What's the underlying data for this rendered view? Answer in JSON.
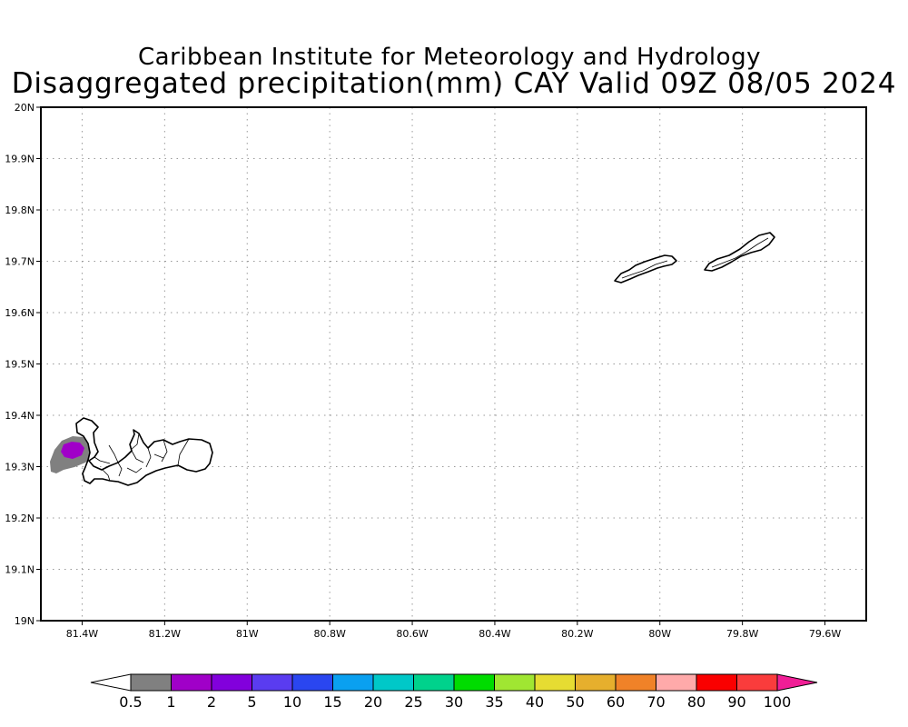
{
  "header": {
    "title": "Caribbean Institute for Meteorology and Hydrology",
    "subtitle": "Disaggregated precipitation(mm) CAY Valid 09Z 08/05 2024"
  },
  "map": {
    "lon_range": [
      -81.5,
      -79.5
    ],
    "lat_range": [
      19.0,
      20.0
    ],
    "grid": "dotted",
    "lon_ticks": [
      {
        "value": -81.4,
        "label": "81.4W"
      },
      {
        "value": -81.2,
        "label": "81.2W"
      },
      {
        "value": -81.0,
        "label": "81W"
      },
      {
        "value": -80.8,
        "label": "80.8W"
      },
      {
        "value": -80.6,
        "label": "80.6W"
      },
      {
        "value": -80.4,
        "label": "80.4W"
      },
      {
        "value": -80.2,
        "label": "80.2W"
      },
      {
        "value": -80.0,
        "label": "80W"
      },
      {
        "value": -79.8,
        "label": "79.8W"
      },
      {
        "value": -79.6,
        "label": "79.6W"
      }
    ],
    "lat_ticks": [
      {
        "value": 20.0,
        "label": "20N"
      },
      {
        "value": 19.9,
        "label": "19.9N"
      },
      {
        "value": 19.8,
        "label": "19.8N"
      },
      {
        "value": 19.7,
        "label": "19.7N"
      },
      {
        "value": 19.6,
        "label": "19.6N"
      },
      {
        "value": 19.5,
        "label": "19.5N"
      },
      {
        "value": 19.4,
        "label": "19.4N"
      },
      {
        "value": 19.3,
        "label": "19.3N"
      },
      {
        "value": 19.2,
        "label": "19.2N"
      },
      {
        "value": 19.1,
        "label": "19.1N"
      },
      {
        "value": 19.0,
        "label": "19N"
      }
    ],
    "precipitation_areas": [
      {
        "category": "0.5-1",
        "color": "#808080"
      },
      {
        "category": "1-2",
        "color": "#a000c8"
      }
    ]
  },
  "colorbar": {
    "labels": [
      "0.5",
      "1",
      "2",
      "5",
      "10",
      "15",
      "20",
      "25",
      "30",
      "35",
      "40",
      "50",
      "60",
      "70",
      "80",
      "90",
      "100"
    ],
    "colors": [
      "#ffffff",
      "#808080",
      "#a000c8",
      "#8200dc",
      "#5a3cf0",
      "#2a46f0",
      "#0aa0f0",
      "#00c8c8",
      "#00d28c",
      "#00dc00",
      "#a0e632",
      "#e6dc32",
      "#e6af2d",
      "#f08228",
      "#ffaaaa",
      "#fa0000",
      "#fa3c3c",
      "#f01e96"
    ]
  }
}
